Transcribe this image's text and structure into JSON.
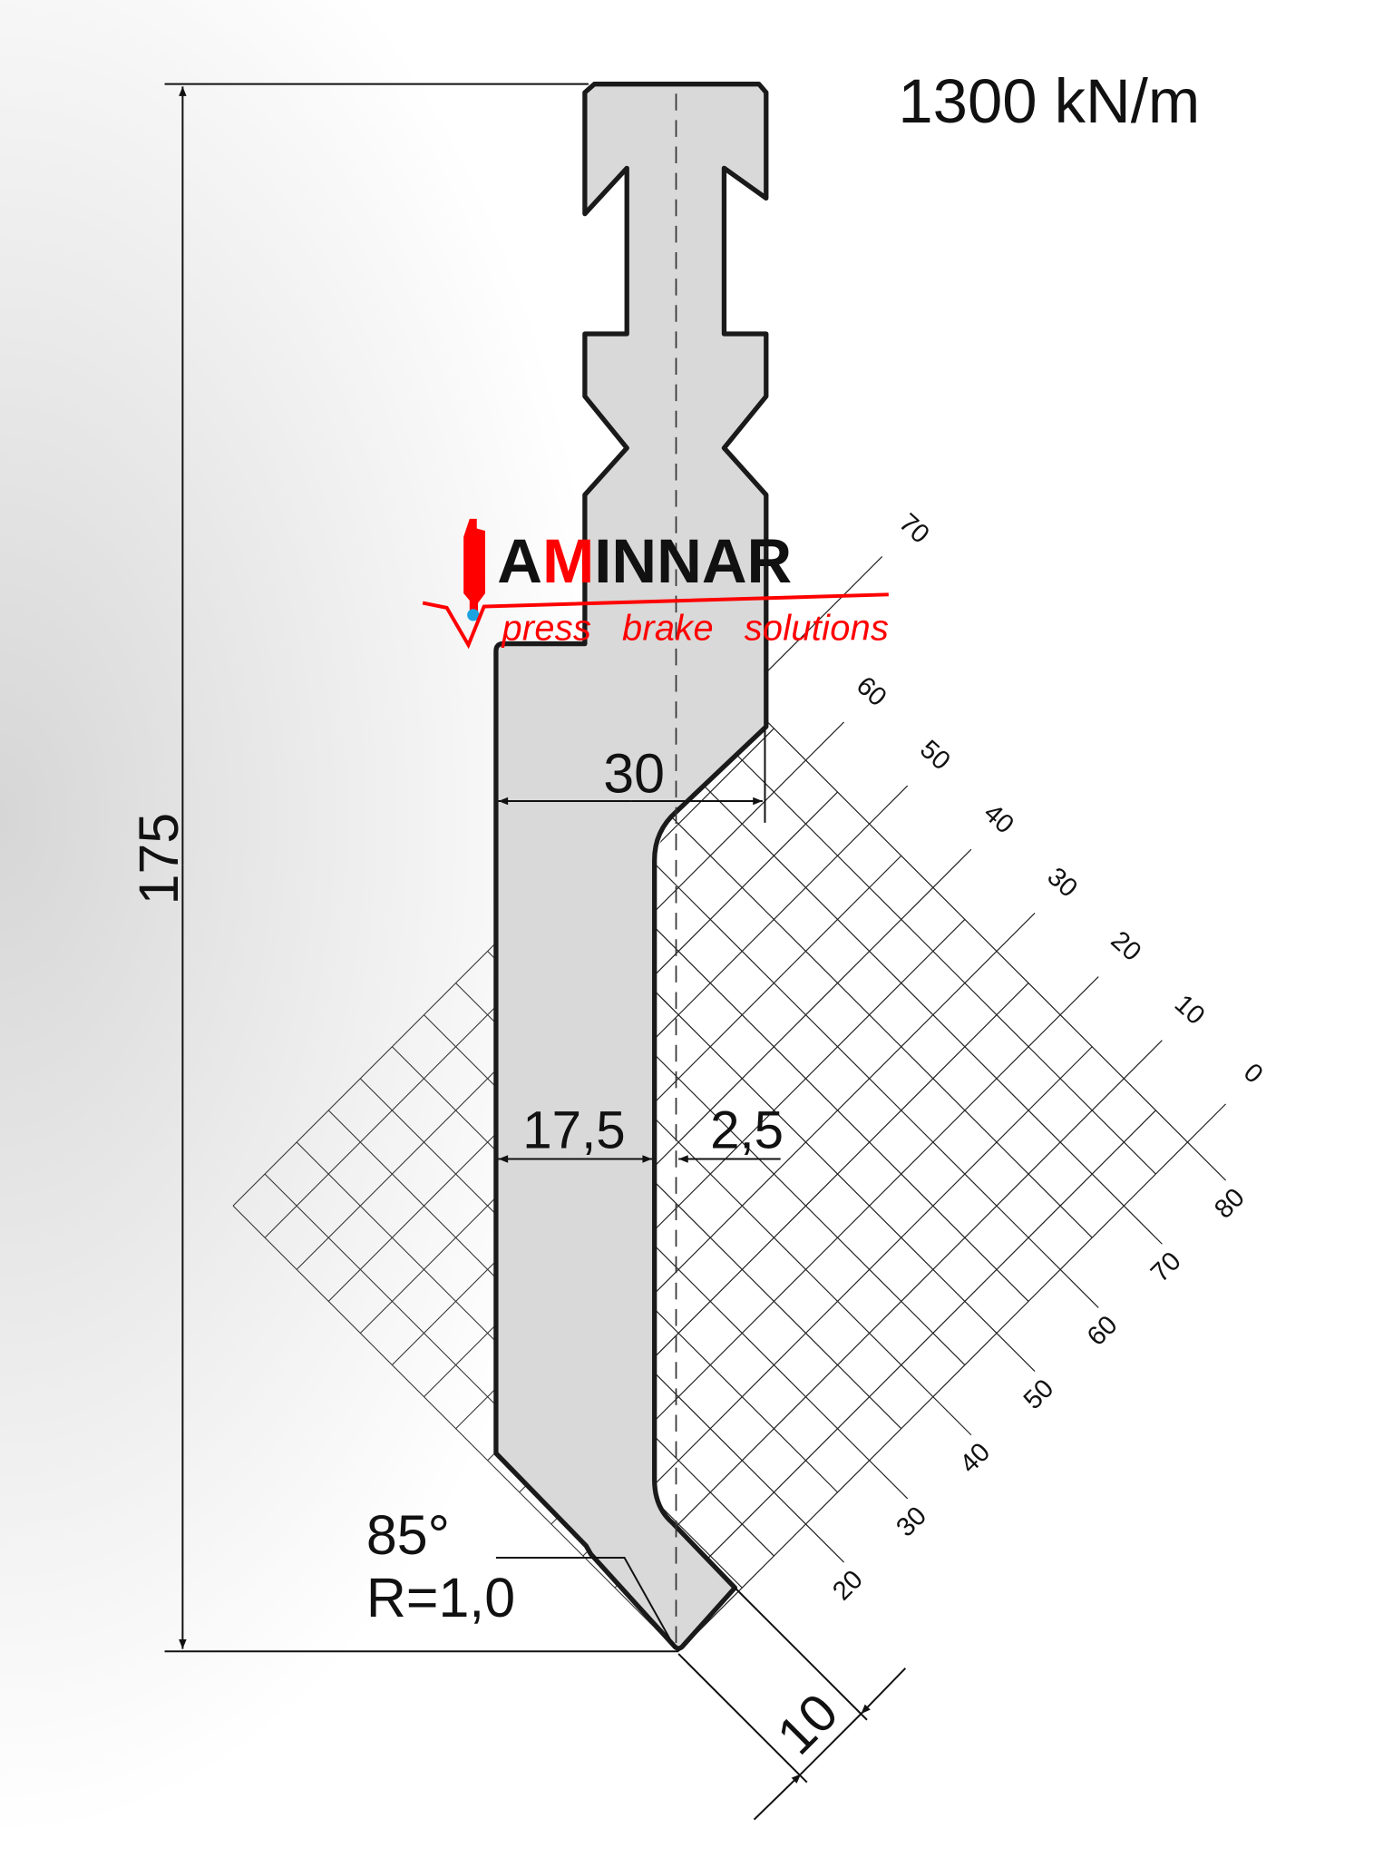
{
  "load_rating": "1300 kN/m",
  "dimensions": {
    "height": "175",
    "width_top": "30",
    "half_width": "17,5",
    "offset": "2,5",
    "angle": "85°",
    "radius": "R=1,0",
    "tip_length": "10"
  },
  "logo": {
    "name_part1": "A",
    "name_part2": "M",
    "name_part3": "INNAR",
    "tagline": "press   brake   solutions",
    "colors": {
      "red": "#ff0000",
      "black": "#111111",
      "blue": "#1aa3e0"
    }
  },
  "grid": {
    "height_labels": [
      "0",
      "10",
      "20",
      "30",
      "40",
      "50",
      "60",
      "70"
    ],
    "width_labels": [
      "20",
      "30",
      "40",
      "50",
      "60",
      "70",
      "80"
    ]
  },
  "colors": {
    "tool_fill": "#d9d9d9",
    "outline": "#1a1a1a"
  }
}
